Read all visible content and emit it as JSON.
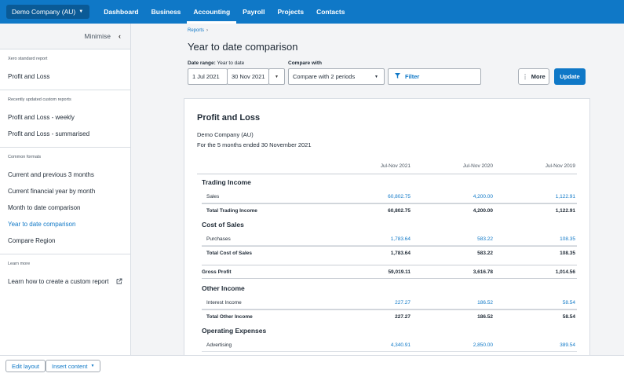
{
  "topnav": {
    "org": "Demo Company (AU)",
    "items": [
      "Dashboard",
      "Business",
      "Accounting",
      "Payroll",
      "Projects",
      "Contacts"
    ],
    "active": "Accounting"
  },
  "sidebar": {
    "minimise": "Minimise",
    "sections": [
      {
        "heading": "Xero standard report",
        "links": [
          "Profit and Loss"
        ]
      },
      {
        "heading": "Recently updated custom reports",
        "links": [
          "Profit and Loss - weekly",
          "Profit and Loss - summarised"
        ]
      },
      {
        "heading": "Common formats",
        "links": [
          "Current and previous 3 months",
          "Current financial year by month",
          "Month to date comparison",
          "Year to date comparison",
          "Compare Region"
        ]
      },
      {
        "heading": "Learn more",
        "links": [
          "Learn how to create a custom report"
        ]
      }
    ]
  },
  "main": {
    "breadcrumb": "Reports",
    "breadcrumb_sep": "›",
    "title": "Year to date comparison",
    "date_range_label": "Date range:",
    "date_range_value": "Year to date",
    "compare_label": "Compare with",
    "from": "1 Jul 2021",
    "to": "30 Nov 2021",
    "compare_value": "Compare with 2 periods",
    "filter": "Filter",
    "more": "More",
    "update": "Update"
  },
  "report": {
    "title": "Profit and Loss",
    "org": "Demo Company (AU)",
    "period": "For the 5 months ended 30 November 2021",
    "columns": [
      "Jul-Nov 2021",
      "Jul-Nov 2020",
      "Jul-Nov 2019"
    ],
    "rows": [
      {
        "type": "section",
        "name": "Trading Income"
      },
      {
        "type": "link",
        "name": "Sales",
        "values": [
          "60,802.75",
          "4,200.00",
          "1,122.91"
        ]
      },
      {
        "type": "total",
        "name": "Total Trading Income",
        "values": [
          "60,802.75",
          "4,200.00",
          "1,122.91"
        ]
      },
      {
        "type": "section",
        "name": "Cost of Sales"
      },
      {
        "type": "link",
        "name": "Purchases",
        "values": [
          "1,783.64",
          "583.22",
          "108.35"
        ]
      },
      {
        "type": "total",
        "name": "Total Cost of Sales",
        "values": [
          "1,783.64",
          "583.22",
          "108.35"
        ]
      },
      {
        "type": "gross",
        "name": "Gross Profit",
        "values": [
          "59,019.11",
          "3,616.78",
          "1,014.56"
        ]
      },
      {
        "type": "section",
        "name": "Other Income"
      },
      {
        "type": "link",
        "name": "Interest Income",
        "values": [
          "227.27",
          "186.52",
          "58.54"
        ]
      },
      {
        "type": "total",
        "name": "Total Other Income",
        "values": [
          "227.27",
          "186.52",
          "58.54"
        ]
      },
      {
        "type": "section",
        "name": "Operating Expenses"
      },
      {
        "type": "link",
        "name": "Advertising",
        "values": [
          "4,340.91",
          "2,850.00",
          "389.54"
        ]
      }
    ]
  },
  "bottombar": {
    "edit_layout": "Edit layout",
    "insert_content": "Insert content"
  },
  "colors": {
    "brand": "#0f78c7",
    "link": "#0f78c7"
  }
}
